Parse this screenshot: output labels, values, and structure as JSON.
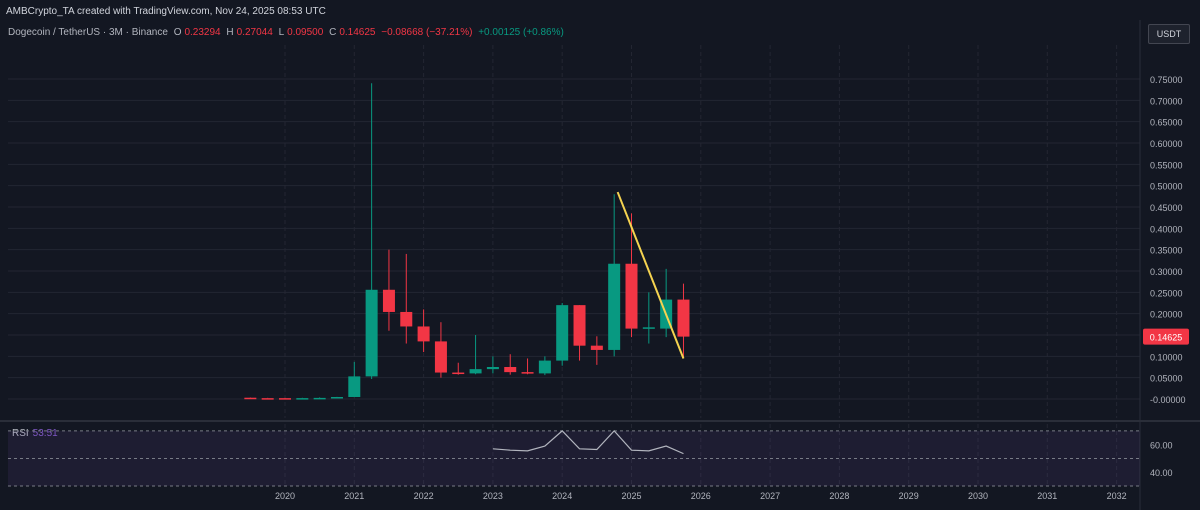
{
  "header": {
    "caption": "AMBCrypto_TA created with TradingView.com, Nov 24, 2025 08:53 UTC",
    "symbol_title": "Dogecoin / TetherUS · 3M · Binance",
    "ohlc": {
      "o_label": "O",
      "o_value": "0.23294",
      "h_label": "H",
      "h_value": "0.27044",
      "l_label": "L",
      "l_value": "0.09500",
      "c_label": "C",
      "c_value": "0.14625",
      "change": "−0.08668 (−37.21%)",
      "extra": "+0.00125 (+0.86%)"
    },
    "currency_button": "USDT"
  },
  "chart_data": {
    "type": "candlestick",
    "title": "Dogecoin / TetherUS · 3M · Binance",
    "y_axis": {
      "min": -0.02,
      "max": 0.76,
      "ticks": [
        -0.0,
        0.05,
        0.1,
        0.15,
        0.2,
        0.25,
        0.3,
        0.35,
        0.4,
        0.45,
        0.5,
        0.55,
        0.6,
        0.65,
        0.7,
        0.75
      ],
      "tick_labels": [
        "-0.00000",
        "0.05000",
        "0.10000",
        "0.15000",
        "0.20000",
        "0.25000",
        "0.30000",
        "0.35000",
        "0.40000",
        "0.45000",
        "0.50000",
        "0.55000",
        "0.60000",
        "0.65000",
        "0.70000",
        "0.75000"
      ]
    },
    "x_axis": {
      "min": 2019.0,
      "max": 2032.3,
      "year_labels": [
        "2020",
        "2021",
        "2022",
        "2023",
        "2024",
        "2025",
        "2026",
        "2027",
        "2028",
        "2029",
        "2030",
        "2031",
        "2032"
      ]
    },
    "last_price_label": "0.14625",
    "candles": [
      {
        "t": 2019.5,
        "o": 0.003,
        "h": 0.0035,
        "l": 0.0018,
        "c": 0.002
      },
      {
        "t": 2019.75,
        "o": 0.002,
        "h": 0.0027,
        "l": 0.0018,
        "c": 0.0019
      },
      {
        "t": 2020.0,
        "o": 0.002,
        "h": 0.0025,
        "l": 0.0015,
        "c": 0.0019
      },
      {
        "t": 2020.25,
        "o": 0.0019,
        "h": 0.0028,
        "l": 0.0017,
        "c": 0.0021
      },
      {
        "t": 2020.5,
        "o": 0.0021,
        "h": 0.0037,
        "l": 0.002,
        "c": 0.0026
      },
      {
        "t": 2020.75,
        "o": 0.0026,
        "h": 0.005,
        "l": 0.0024,
        "c": 0.0047
      },
      {
        "t": 2021.0,
        "o": 0.0047,
        "h": 0.087,
        "l": 0.0045,
        "c": 0.053
      },
      {
        "t": 2021.25,
        "o": 0.053,
        "h": 0.74,
        "l": 0.047,
        "c": 0.256
      },
      {
        "t": 2021.5,
        "o": 0.256,
        "h": 0.35,
        "l": 0.16,
        "c": 0.204
      },
      {
        "t": 2021.75,
        "o": 0.204,
        "h": 0.34,
        "l": 0.13,
        "c": 0.17
      },
      {
        "t": 2022.0,
        "o": 0.17,
        "h": 0.21,
        "l": 0.11,
        "c": 0.135
      },
      {
        "t": 2022.25,
        "o": 0.135,
        "h": 0.18,
        "l": 0.05,
        "c": 0.062
      },
      {
        "t": 2022.5,
        "o": 0.062,
        "h": 0.085,
        "l": 0.057,
        "c": 0.06
      },
      {
        "t": 2022.75,
        "o": 0.06,
        "h": 0.15,
        "l": 0.058,
        "c": 0.07
      },
      {
        "t": 2023.0,
        "o": 0.07,
        "h": 0.1,
        "l": 0.06,
        "c": 0.075
      },
      {
        "t": 2023.25,
        "o": 0.075,
        "h": 0.105,
        "l": 0.057,
        "c": 0.063
      },
      {
        "t": 2023.5,
        "o": 0.063,
        "h": 0.095,
        "l": 0.058,
        "c": 0.06
      },
      {
        "t": 2023.75,
        "o": 0.06,
        "h": 0.1,
        "l": 0.056,
        "c": 0.09
      },
      {
        "t": 2024.0,
        "o": 0.09,
        "h": 0.225,
        "l": 0.078,
        "c": 0.22
      },
      {
        "t": 2024.25,
        "o": 0.22,
        "h": 0.22,
        "l": 0.09,
        "c": 0.125
      },
      {
        "t": 2024.5,
        "o": 0.125,
        "h": 0.147,
        "l": 0.08,
        "c": 0.115
      },
      {
        "t": 2024.75,
        "o": 0.115,
        "h": 0.48,
        "l": 0.1,
        "c": 0.317
      },
      {
        "t": 2025.0,
        "o": 0.317,
        "h": 0.435,
        "l": 0.145,
        "c": 0.165
      },
      {
        "t": 2025.25,
        "o": 0.165,
        "h": 0.25,
        "l": 0.13,
        "c": 0.168
      },
      {
        "t": 2025.5,
        "o": 0.165,
        "h": 0.305,
        "l": 0.145,
        "c": 0.233
      },
      {
        "t": 2025.75,
        "o": 0.233,
        "h": 0.2704,
        "l": 0.095,
        "c": 0.1462
      }
    ],
    "trendline": {
      "x1": 2024.8,
      "y1": 0.485,
      "x2": 2025.75,
      "y2": 0.095,
      "color": "#f5d350"
    },
    "rsi": {
      "label": "RSI",
      "value_label": "53.51",
      "y_range": [
        30,
        75
      ],
      "upper_band": 70,
      "lower_band": 30,
      "tick_labels": [
        "60.00",
        "40.00"
      ],
      "tick_values": [
        60,
        40
      ],
      "line_color": "#7e57c2",
      "points": [
        {
          "t": 2023.0,
          "v": 57.0
        },
        {
          "t": 2023.25,
          "v": 56.0
        },
        {
          "t": 2023.5,
          "v": 55.5
        },
        {
          "t": 2023.75,
          "v": 59.0
        },
        {
          "t": 2024.0,
          "v": 70.0
        },
        {
          "t": 2024.25,
          "v": 57.0
        },
        {
          "t": 2024.5,
          "v": 56.5
        },
        {
          "t": 2024.75,
          "v": 70.0
        },
        {
          "t": 2025.0,
          "v": 56.0
        },
        {
          "t": 2025.25,
          "v": 55.5
        },
        {
          "t": 2025.5,
          "v": 59.0
        },
        {
          "t": 2025.75,
          "v": 53.5
        }
      ]
    },
    "colors": {
      "up": "#089981",
      "down": "#f23645",
      "grid": "#232632",
      "text": "#b2b5be"
    }
  }
}
